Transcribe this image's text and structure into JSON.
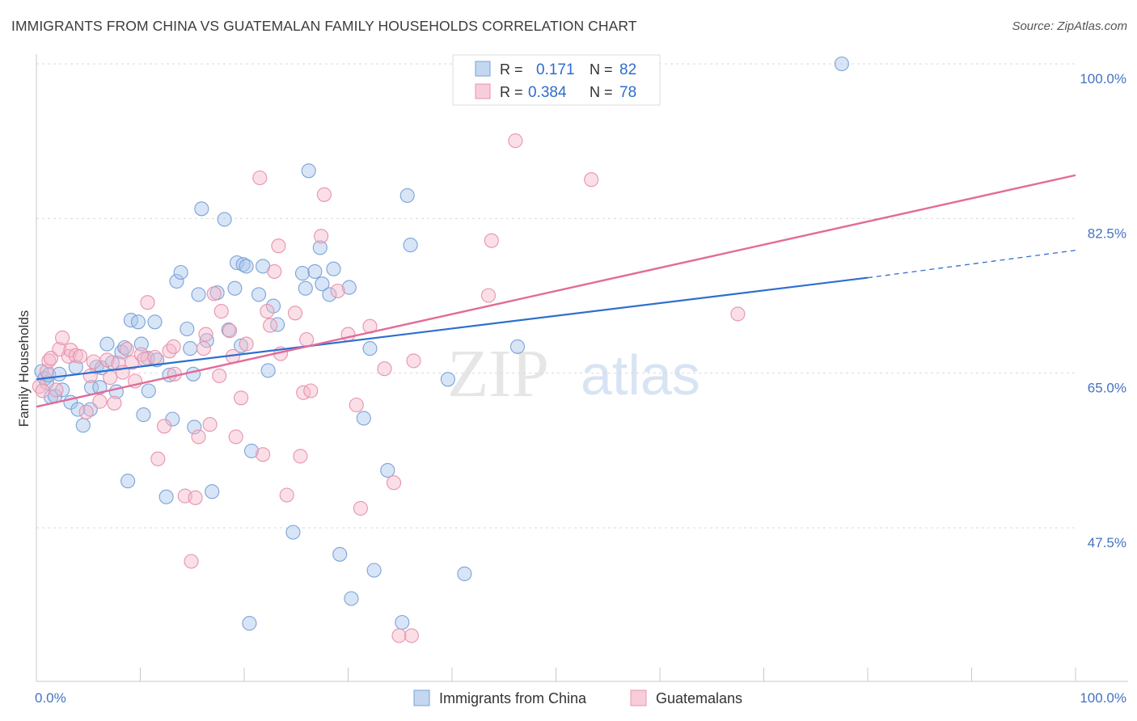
{
  "header": {
    "title": "IMMIGRANTS FROM CHINA VS GUATEMALAN FAMILY HOUSEHOLDS CORRELATION CHART",
    "source": "Source: ZipAtlas.com"
  },
  "watermark": {
    "zip": "ZIP",
    "atlas": "atlas"
  },
  "legend_top": {
    "rows": [
      {
        "r_label": "R =",
        "r_value": "0.171",
        "n_label": "N =",
        "n_value": "82"
      },
      {
        "r_label": "R =",
        "r_value": "0.384",
        "n_label": "N =",
        "n_value": "78"
      }
    ]
  },
  "chart_data": {
    "type": "scatter",
    "title": "IMMIGRANTS FROM CHINA VS GUATEMALAN FAMILY HOUSEHOLDS CORRELATION CHART",
    "xlabel": "",
    "ylabel": "Family Households",
    "xlim": [
      0,
      100
    ],
    "ylim": [
      34,
      100
    ],
    "x_tick_labels": [
      "0.0%",
      "100.0%"
    ],
    "y_tick_labels": [
      "100.0%",
      "82.5%",
      "65.0%",
      "47.5%"
    ],
    "y_tick_values": [
      100,
      82.5,
      65,
      47.5
    ],
    "grid": true,
    "legend_position": "top-center",
    "colors": {
      "china": "#a9c6ea",
      "china_line": "#2e6fce",
      "guatemalan": "#f4b8ca",
      "guatemalan_line": "#e36b98"
    },
    "series": [
      {
        "name": "Immigrants from China",
        "key": "china",
        "r": 0.171,
        "n": 82,
        "trend": {
          "x0": 0,
          "y0": 64.3,
          "x1": 80,
          "y1": 75.8,
          "dash_x1": 100,
          "dash_y1": 78.9
        },
        "points": [
          [
            0.5,
            65.2
          ],
          [
            0.8,
            64.4
          ],
          [
            1.0,
            63.9
          ],
          [
            1.2,
            64.8
          ],
          [
            1.4,
            62.3
          ],
          [
            1.8,
            62.4
          ],
          [
            2.2,
            64.9
          ],
          [
            2.5,
            63.1
          ],
          [
            3.3,
            61.7
          ],
          [
            3.8,
            65.7
          ],
          [
            4.0,
            60.9
          ],
          [
            4.5,
            59.1
          ],
          [
            5.2,
            60.9
          ],
          [
            5.3,
            63.4
          ],
          [
            5.8,
            65.7
          ],
          [
            6.1,
            63.4
          ],
          [
            6.3,
            65.6
          ],
          [
            6.8,
            68.3
          ],
          [
            7.3,
            66.2
          ],
          [
            7.7,
            62.9
          ],
          [
            8.2,
            67.4
          ],
          [
            8.5,
            67.9
          ],
          [
            8.8,
            52.8
          ],
          [
            9.1,
            71.0
          ],
          [
            9.8,
            70.8
          ],
          [
            10.1,
            68.3
          ],
          [
            10.3,
            60.3
          ],
          [
            10.7,
            66.7
          ],
          [
            10.8,
            63.0
          ],
          [
            11.4,
            70.8
          ],
          [
            11.6,
            66.5
          ],
          [
            12.5,
            51.0
          ],
          [
            12.8,
            64.8
          ],
          [
            13.1,
            59.8
          ],
          [
            13.5,
            75.4
          ],
          [
            13.9,
            76.4
          ],
          [
            14.5,
            70.0
          ],
          [
            14.8,
            67.8
          ],
          [
            15.1,
            64.9
          ],
          [
            15.2,
            58.9
          ],
          [
            15.6,
            73.9
          ],
          [
            15.9,
            83.6
          ],
          [
            16.4,
            68.7
          ],
          [
            16.9,
            51.6
          ],
          [
            17.4,
            74.1
          ],
          [
            18.1,
            82.4
          ],
          [
            18.5,
            69.9
          ],
          [
            19.1,
            74.6
          ],
          [
            19.3,
            77.5
          ],
          [
            19.7,
            68.1
          ],
          [
            19.9,
            77.3
          ],
          [
            20.2,
            77.1
          ],
          [
            20.5,
            36.7
          ],
          [
            20.7,
            56.2
          ],
          [
            21.4,
            73.9
          ],
          [
            21.8,
            77.1
          ],
          [
            22.3,
            65.3
          ],
          [
            22.8,
            72.6
          ],
          [
            23.2,
            70.5
          ],
          [
            24.7,
            47.0
          ],
          [
            25.6,
            76.3
          ],
          [
            25.9,
            74.6
          ],
          [
            26.2,
            87.9
          ],
          [
            26.8,
            76.5
          ],
          [
            27.3,
            79.2
          ],
          [
            27.5,
            75.1
          ],
          [
            28.2,
            73.9
          ],
          [
            28.6,
            76.8
          ],
          [
            29.2,
            44.5
          ],
          [
            30.1,
            74.7
          ],
          [
            30.3,
            39.5
          ],
          [
            31.5,
            59.9
          ],
          [
            32.1,
            67.8
          ],
          [
            32.5,
            42.7
          ],
          [
            33.8,
            54.0
          ],
          [
            35.2,
            36.8
          ],
          [
            35.7,
            85.1
          ],
          [
            36.0,
            79.5
          ],
          [
            39.6,
            64.3
          ],
          [
            41.2,
            42.3
          ],
          [
            46.3,
            68.0
          ],
          [
            77.5,
            100.0
          ]
        ]
      },
      {
        "name": "Guatemalans",
        "key": "guatemalan",
        "r": 0.384,
        "n": 78,
        "trend": {
          "x0": 0,
          "y0": 61.2,
          "x1": 100,
          "y1": 87.4
        },
        "points": [
          [
            0.3,
            63.5
          ],
          [
            0.6,
            63.0
          ],
          [
            1.0,
            65.2
          ],
          [
            1.2,
            66.4
          ],
          [
            1.4,
            66.7
          ],
          [
            1.9,
            63.1
          ],
          [
            2.2,
            67.7
          ],
          [
            2.5,
            69.0
          ],
          [
            3.1,
            66.9
          ],
          [
            3.3,
            67.6
          ],
          [
            3.8,
            67.0
          ],
          [
            4.2,
            66.9
          ],
          [
            4.8,
            60.6
          ],
          [
            5.2,
            64.7
          ],
          [
            5.5,
            66.3
          ],
          [
            6.1,
            61.8
          ],
          [
            6.8,
            66.5
          ],
          [
            7.1,
            64.5
          ],
          [
            7.5,
            61.6
          ],
          [
            7.9,
            66.1
          ],
          [
            8.3,
            65.1
          ],
          [
            8.7,
            67.7
          ],
          [
            9.2,
            66.2
          ],
          [
            9.5,
            64.1
          ],
          [
            10.1,
            67.1
          ],
          [
            10.4,
            66.6
          ],
          [
            10.7,
            73.0
          ],
          [
            11.4,
            66.8
          ],
          [
            11.7,
            55.3
          ],
          [
            12.3,
            59.0
          ],
          [
            12.8,
            67.5
          ],
          [
            13.2,
            68.0
          ],
          [
            13.3,
            64.9
          ],
          [
            14.3,
            51.1
          ],
          [
            14.9,
            43.7
          ],
          [
            15.3,
            50.9
          ],
          [
            15.6,
            57.8
          ],
          [
            16.1,
            67.8
          ],
          [
            16.3,
            69.4
          ],
          [
            16.7,
            59.2
          ],
          [
            17.1,
            74.0
          ],
          [
            17.6,
            64.7
          ],
          [
            17.8,
            72.0
          ],
          [
            18.6,
            69.8
          ],
          [
            18.9,
            66.9
          ],
          [
            19.2,
            57.8
          ],
          [
            19.7,
            62.2
          ],
          [
            20.2,
            68.3
          ],
          [
            21.5,
            87.1
          ],
          [
            21.8,
            55.8
          ],
          [
            22.2,
            72.0
          ],
          [
            22.5,
            70.4
          ],
          [
            22.9,
            76.5
          ],
          [
            23.3,
            79.4
          ],
          [
            23.5,
            67.2
          ],
          [
            24.1,
            51.2
          ],
          [
            24.9,
            71.8
          ],
          [
            25.4,
            55.6
          ],
          [
            25.7,
            62.8
          ],
          [
            26.0,
            68.8
          ],
          [
            26.4,
            63.0
          ],
          [
            27.4,
            80.5
          ],
          [
            27.7,
            85.2
          ],
          [
            29.0,
            74.3
          ],
          [
            30.0,
            69.4
          ],
          [
            30.8,
            61.4
          ],
          [
            31.2,
            49.7
          ],
          [
            32.1,
            70.3
          ],
          [
            33.5,
            65.5
          ],
          [
            34.4,
            52.6
          ],
          [
            34.9,
            35.3
          ],
          [
            36.1,
            35.3
          ],
          [
            36.3,
            66.4
          ],
          [
            43.5,
            73.8
          ],
          [
            43.8,
            80.0
          ],
          [
            46.1,
            91.3
          ],
          [
            53.4,
            86.9
          ],
          [
            67.5,
            71.7
          ]
        ]
      }
    ]
  },
  "legend_bottom": {
    "items": [
      {
        "label": "Immigrants from China"
      },
      {
        "label": "Guatemalans"
      }
    ]
  }
}
